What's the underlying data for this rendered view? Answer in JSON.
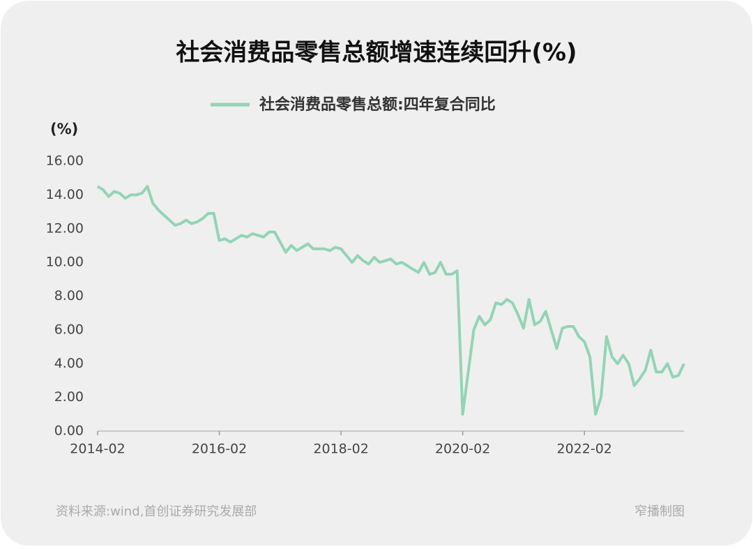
{
  "chart_data": {
    "type": "line",
    "title": "社会消费品零售总额增速连续回升(%)",
    "y_label": "(%)",
    "source": "资料来源:wind,首创证券研究发展部",
    "credit": "窄播制图",
    "categories": [
      "2014-02",
      null,
      null,
      null,
      null,
      null,
      null,
      null,
      null,
      null,
      null,
      null,
      null,
      null,
      null,
      null,
      null,
      null,
      null,
      null,
      null,
      null,
      "2016-02",
      null,
      null,
      null,
      null,
      null,
      null,
      null,
      null,
      null,
      null,
      null,
      null,
      null,
      null,
      null,
      null,
      null,
      null,
      null,
      null,
      null,
      "2018-02",
      null,
      null,
      null,
      null,
      null,
      null,
      null,
      null,
      null,
      null,
      null,
      null,
      null,
      null,
      null,
      null,
      null,
      null,
      null,
      null,
      null,
      "2020-02",
      null,
      null,
      null,
      null,
      null,
      null,
      null,
      null,
      null,
      null,
      null,
      null,
      null,
      null,
      null,
      null,
      null,
      null,
      null,
      null,
      null,
      "2022-02",
      null,
      null,
      null,
      null,
      null,
      null,
      null,
      null,
      null,
      null,
      null,
      null,
      null,
      null,
      null,
      null,
      null,
      null
    ],
    "series": [
      {
        "name": "社会消费品零售总额:四年复合同比",
        "color": "#93d4b6",
        "values": [
          14.5,
          14.3,
          13.9,
          14.2,
          14.1,
          13.8,
          14.0,
          14.0,
          14.1,
          14.5,
          13.5,
          13.1,
          12.8,
          12.5,
          12.2,
          12.3,
          12.5,
          12.3,
          12.4,
          12.6,
          12.9,
          12.9,
          11.3,
          11.4,
          11.2,
          11.4,
          11.6,
          11.5,
          11.7,
          11.6,
          11.5,
          11.8,
          11.8,
          11.2,
          10.6,
          11.0,
          10.7,
          10.9,
          11.1,
          10.8,
          10.8,
          10.8,
          10.7,
          10.9,
          10.8,
          10.4,
          10.0,
          10.4,
          10.1,
          9.9,
          10.3,
          10.0,
          10.1,
          10.2,
          9.9,
          10.0,
          9.8,
          9.6,
          9.4,
          10.0,
          9.3,
          9.4,
          10.0,
          9.3,
          9.3,
          9.5,
          1.0,
          3.5,
          6.0,
          6.8,
          6.3,
          6.6,
          7.6,
          7.5,
          7.8,
          7.6,
          6.9,
          6.1,
          7.8,
          6.3,
          6.5,
          7.1,
          6.0,
          4.9,
          6.1,
          6.2,
          6.2,
          5.6,
          5.3,
          4.4,
          1.0,
          2.0,
          5.6,
          4.4,
          4.0,
          4.5,
          4.0,
          2.7,
          3.1,
          3.6,
          4.8,
          3.5,
          3.5,
          4.0,
          3.2,
          3.3,
          4.0
        ]
      }
    ],
    "ylim": [
      0,
      16
    ],
    "yticks": [
      {
        "value": 0,
        "label": "0.00"
      },
      {
        "value": 2,
        "label": "2.00"
      },
      {
        "value": 4,
        "label": "4.00"
      },
      {
        "value": 6,
        "label": "6.00"
      },
      {
        "value": 8,
        "label": "8.00"
      },
      {
        "value": 10,
        "label": "10.00"
      },
      {
        "value": 12,
        "label": "12.00"
      },
      {
        "value": 14,
        "label": "14.00"
      },
      {
        "value": 16,
        "label": "16.00"
      }
    ],
    "grid": false
  }
}
